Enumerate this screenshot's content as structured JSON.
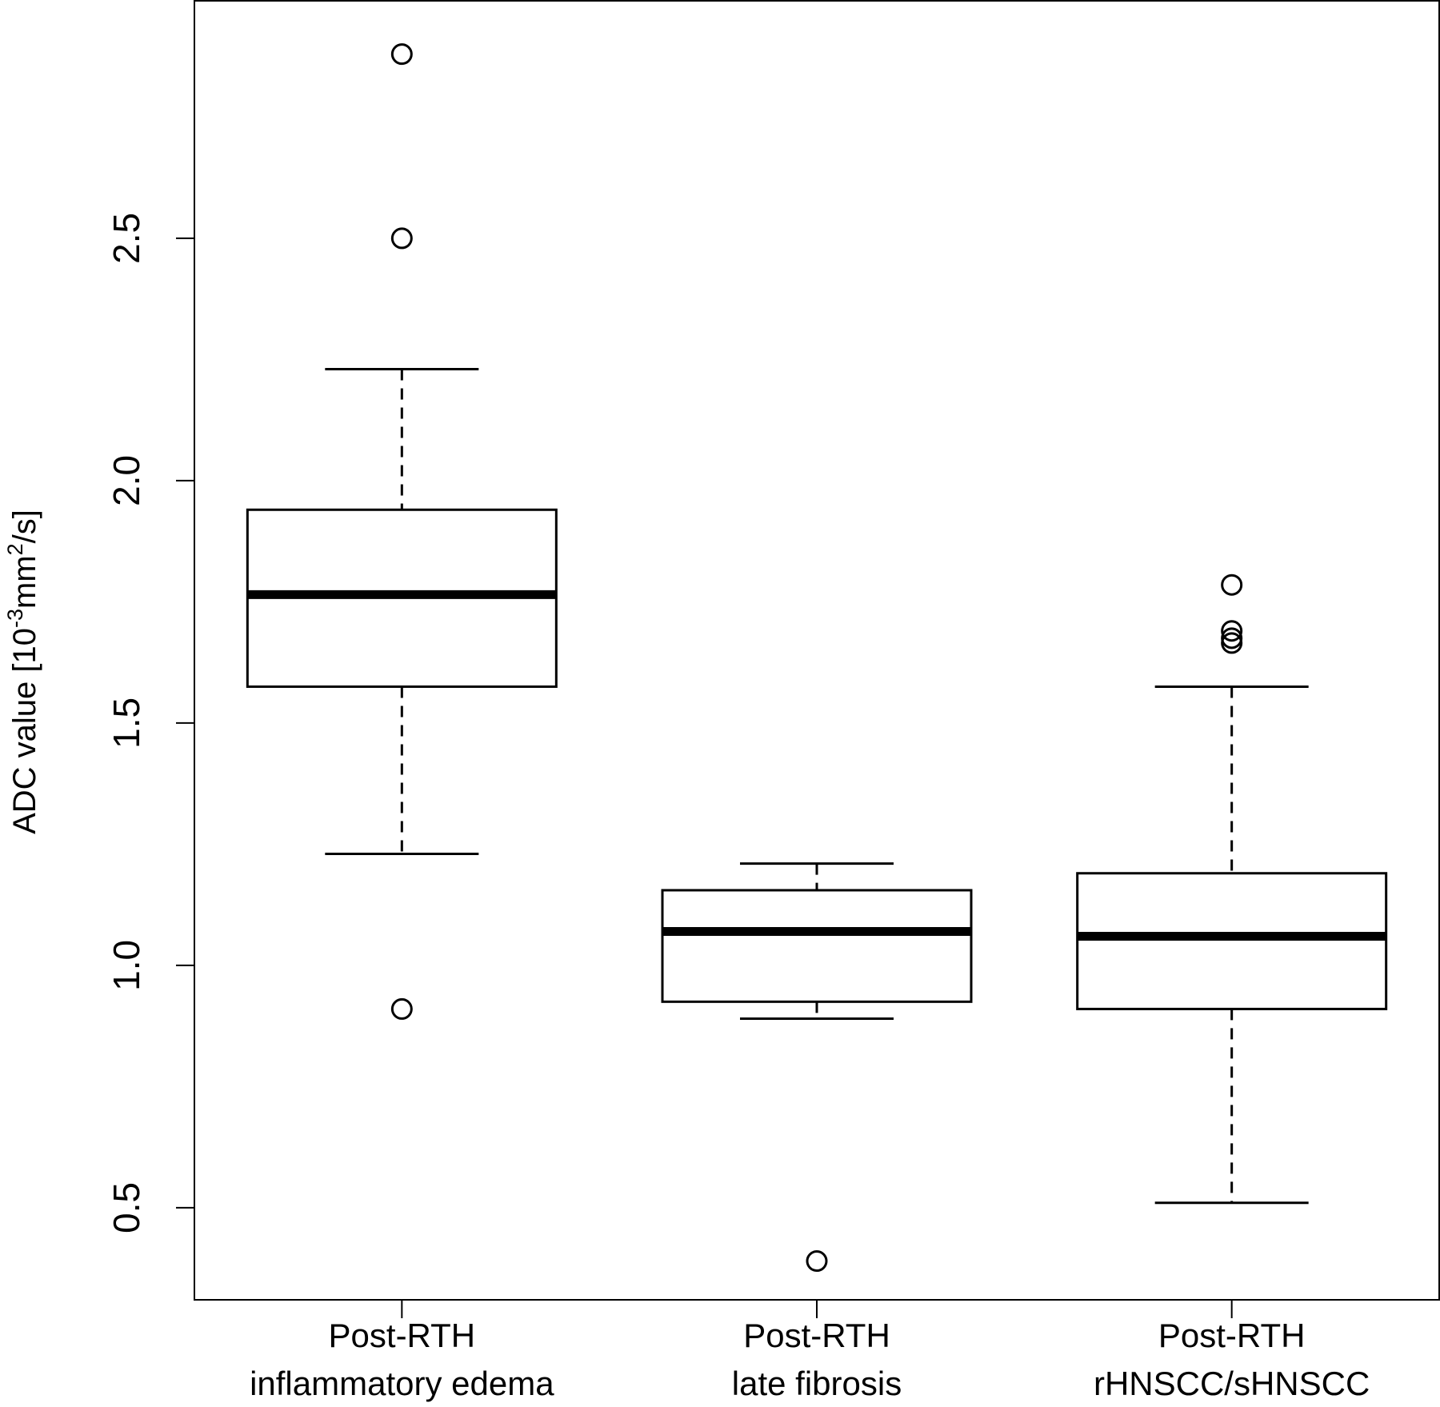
{
  "chart_data": {
    "type": "box",
    "ylabel": {
      "prefix": "ADC value [10",
      "exp1": "-3",
      "mid": "mm",
      "exp2": "2",
      "suffix": "/s]"
    },
    "ylim": [
      0.31,
      2.99
    ],
    "yticks": [
      0.5,
      1.0,
      1.5,
      2.0,
      2.5
    ],
    "ytick_labels": [
      "0.5",
      "1.0",
      "1.5",
      "2.0",
      "2.5"
    ],
    "grid": false,
    "groups": [
      {
        "label_line1": "Post-RTH",
        "label_line2": "inflammatory edema",
        "whisker_low": 1.23,
        "q1": 1.575,
        "median": 1.765,
        "q3": 1.94,
        "whisker_high": 2.23,
        "outliers": [
          0.91,
          2.5,
          2.88
        ]
      },
      {
        "label_line1": "Post-RTH",
        "label_line2": "late fibrosis",
        "whisker_low": 0.89,
        "q1": 0.925,
        "median": 1.07,
        "q3": 1.155,
        "whisker_high": 1.21,
        "outliers": [
          0.39
        ]
      },
      {
        "label_line1": "Post-RTH",
        "label_line2": "rHNSCC/sHNSCC",
        "whisker_low": 0.51,
        "q1": 0.91,
        "median": 1.06,
        "q3": 1.19,
        "whisker_high": 1.575,
        "outliers": [
          1.665,
          1.675,
          1.69,
          1.785
        ]
      }
    ]
  }
}
